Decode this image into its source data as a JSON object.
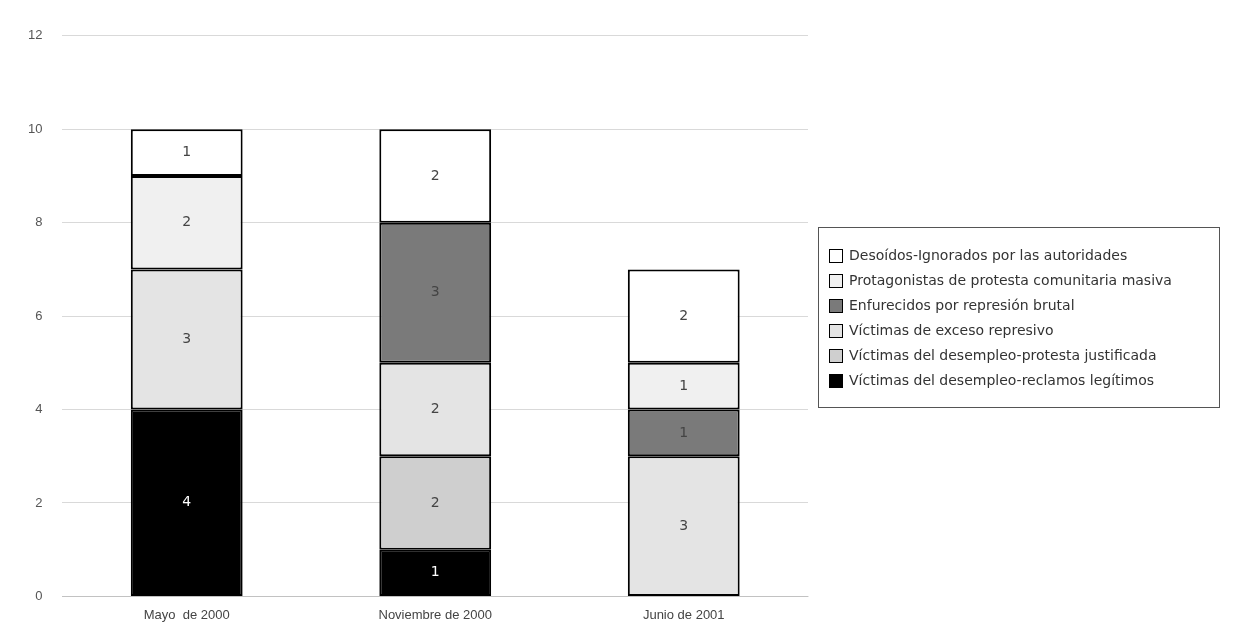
{
  "chart_data": {
    "type": "bar",
    "stacked": true,
    "categories": [
      "Mayo  de 2000",
      "Noviembre de 2000",
      "Junio de 2001"
    ],
    "series": [
      {
        "name": "Víctimas del desempleo-reclamos legítimos",
        "color": "#000000",
        "values": [
          4,
          1,
          null
        ]
      },
      {
        "name": "Víctimas del desempleo-protesta justificada",
        "color": "#cfcfcf",
        "values": [
          null,
          2,
          null
        ]
      },
      {
        "name": "Víctimas de exceso represivo",
        "color": "#e4e4e4",
        "values": [
          3,
          2,
          3
        ]
      },
      {
        "name": "Enfurecidos por represión brutal",
        "color": "#7a7a7a",
        "values": [
          null,
          3,
          1
        ]
      },
      {
        "name": "Protagonistas de protesta comunitaria masiva",
        "color": "#f0f0f0",
        "values": [
          2,
          null,
          1
        ]
      },
      {
        "name": "Desoídos-Ignorados por las autoridades",
        "color": "#ffffff",
        "values": [
          1,
          2,
          2
        ]
      }
    ],
    "ylim": [
      0,
      12
    ],
    "yticks": [
      0,
      2,
      4,
      6,
      8,
      10,
      12
    ],
    "grid": "y",
    "legend": "right",
    "data_labels": true
  }
}
